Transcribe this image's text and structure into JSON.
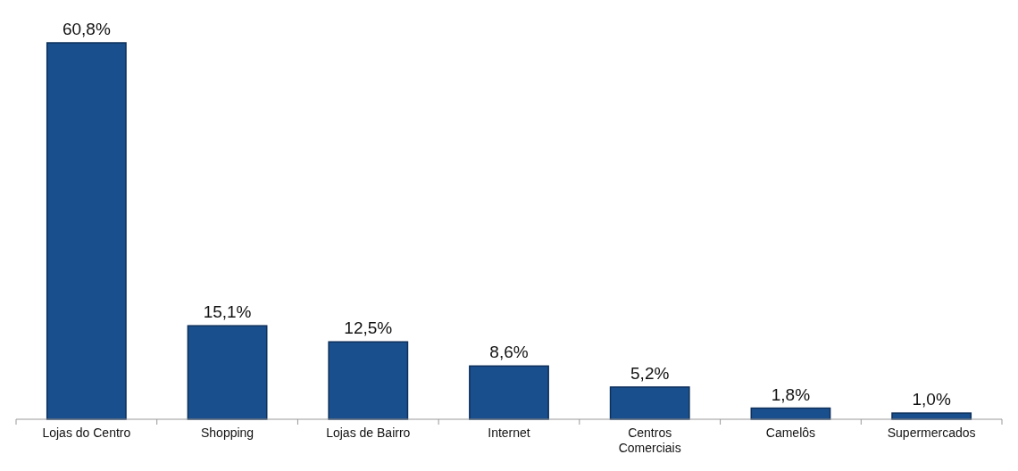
{
  "chart_data": {
    "type": "bar",
    "categories": [
      "Lojas do Centro",
      "Shopping",
      "Lojas de Bairro",
      "Internet",
      "Centros Comerciais",
      "Camelôs",
      "Supermercados"
    ],
    "values": [
      60.8,
      15.1,
      12.5,
      8.6,
      5.2,
      1.8,
      1.0
    ],
    "value_labels": [
      "60,8%",
      "15,1%",
      "12,5%",
      "8,6%",
      "5,2%",
      "1,8%",
      "1,0%"
    ],
    "color": "#1a4f8e",
    "ylim": [
      0,
      60.8
    ],
    "tick_labels": "x"
  }
}
